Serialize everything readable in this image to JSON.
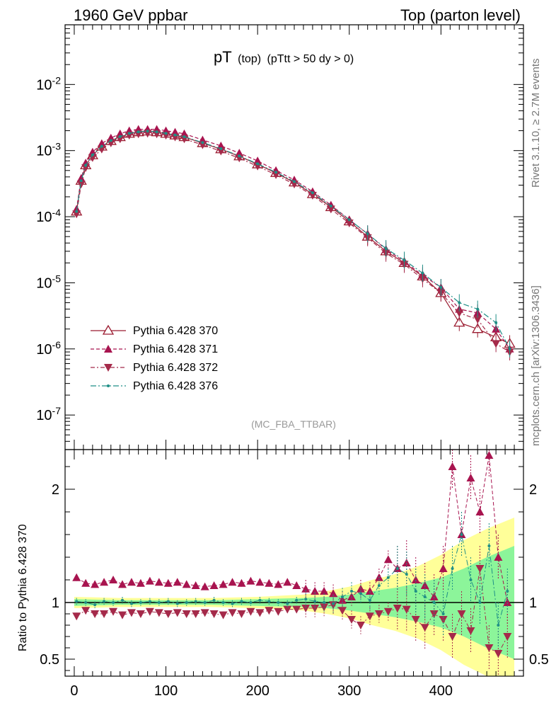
{
  "header": {
    "left": "1960 GeV ppbar",
    "right": "Top (parton level)"
  },
  "title": {
    "main": "pT",
    "sub1": "(top)",
    "sub2": "(pTtt > 50 dy > 0)"
  },
  "side": {
    "rivet": "Rivet 3.1.10, ≥ 2.7M events",
    "mcplots": "mcplots.cern.ch [arXiv:1306.3436]"
  },
  "analysis_label": "(MC_FBA_TTBAR)",
  "ratio_ylabel": "Ratio to Pythia 6.428 370",
  "colors": {
    "s370": "#9b1b30",
    "s371": "#a8144f",
    "s372": "#a52a4a",
    "s376": "#1f8f86",
    "band_yellow": "#ffff99",
    "band_green": "#8cf59a"
  },
  "chart_data": [
    {
      "type": "line",
      "panel": "main",
      "ylog": true,
      "xlim": [
        -10,
        490
      ],
      "ylim": [
        3e-08,
        0.08
      ],
      "ytick_labels": [
        "10^-2",
        "10^-3",
        "10^-4",
        "10^-5",
        "10^-6",
        "10^-7"
      ],
      "ytick_values": [
        0.01,
        0.001,
        0.0001,
        1e-05,
        1e-06,
        1e-07
      ],
      "legend_position": "bottom-left",
      "series": [
        {
          "name": "Pythia 6.428 370",
          "marker": "open-triangle-up",
          "x": [
            2.5,
            7.5,
            12.5,
            20,
            30,
            40,
            50,
            60,
            70,
            80,
            90,
            100,
            110,
            120,
            140,
            160,
            180,
            200,
            220,
            240,
            260,
            280,
            300,
            320,
            340,
            360,
            380,
            400,
            420,
            440,
            460,
            475
          ],
          "y": [
            0.00012,
            0.00035,
            0.0006,
            0.00085,
            0.00115,
            0.0014,
            0.0016,
            0.0018,
            0.0019,
            0.00195,
            0.0019,
            0.0018,
            0.0017,
            0.0016,
            0.0013,
            0.00105,
            0.00082,
            0.00062,
            0.00046,
            0.00033,
            0.00022,
            0.00014,
            8.5e-05,
            5e-05,
            3e-05,
            2e-05,
            1.25e-05,
            7e-06,
            2.5e-06,
            2e-06,
            1.5e-06,
            1.2e-06
          ]
        },
        {
          "name": "Pythia 6.428 371",
          "marker": "filled-triangle-up",
          "x": [
            2.5,
            7.5,
            12.5,
            20,
            30,
            40,
            50,
            60,
            70,
            80,
            90,
            100,
            110,
            120,
            140,
            160,
            180,
            200,
            220,
            240,
            260,
            280,
            300,
            320,
            340,
            360,
            380,
            400,
            420,
            440,
            460,
            475
          ],
          "y": [
            0.00013,
            0.00038,
            0.00065,
            0.00095,
            0.00128,
            0.00155,
            0.0018,
            0.002,
            0.0021,
            0.0021,
            0.0021,
            0.002,
            0.0019,
            0.0018,
            0.00145,
            0.00118,
            0.00092,
            0.0007,
            0.0005,
            0.00036,
            0.00024,
            0.00015,
            9e-05,
            5.5e-05,
            3.2e-05,
            2.1e-05,
            1.3e-05,
            8.5e-06,
            4e-06,
            3.5e-06,
            2e-06,
            1e-06
          ]
        },
        {
          "name": "Pythia 6.428 372",
          "marker": "filled-triangle-down",
          "x": [
            2.5,
            7.5,
            12.5,
            20,
            30,
            40,
            50,
            60,
            70,
            80,
            90,
            100,
            110,
            120,
            140,
            160,
            180,
            200,
            220,
            240,
            260,
            280,
            300,
            320,
            340,
            360,
            380,
            400,
            420,
            440,
            460,
            475
          ],
          "y": [
            0.00011,
            0.00031,
            0.00055,
            0.00078,
            0.00105,
            0.0013,
            0.0015,
            0.0017,
            0.00178,
            0.00182,
            0.00178,
            0.0017,
            0.0016,
            0.0015,
            0.00122,
            0.00098,
            0.00077,
            0.00058,
            0.00043,
            0.00031,
            0.00021,
            0.00013,
            8e-05,
            4.8e-05,
            2.8e-05,
            1.9e-05,
            1.15e-05,
            7e-06,
            3.5e-06,
            2.8e-06,
            1.2e-06,
            9e-07
          ]
        },
        {
          "name": "Pythia 6.428 376",
          "marker": "dot",
          "x": [
            2.5,
            7.5,
            12.5,
            20,
            30,
            40,
            50,
            60,
            70,
            80,
            90,
            100,
            110,
            120,
            140,
            160,
            180,
            200,
            220,
            240,
            260,
            280,
            300,
            320,
            340,
            360,
            380,
            400,
            420,
            440,
            460,
            475
          ],
          "y": [
            0.00012,
            0.00035,
            0.0006,
            0.00086,
            0.00116,
            0.00142,
            0.00163,
            0.00182,
            0.00192,
            0.00197,
            0.00192,
            0.00182,
            0.00172,
            0.00162,
            0.00132,
            0.00107,
            0.00083,
            0.00063,
            0.00047,
            0.00034,
            0.00023,
            0.000145,
            9e-05,
            5.5e-05,
            3.3e-05,
            2.2e-05,
            1.4e-05,
            8.5e-06,
            5e-06,
            4e-06,
            2.5e-06,
            1e-06
          ]
        }
      ]
    },
    {
      "type": "line",
      "panel": "ratio",
      "xlim": [
        -10,
        490
      ],
      "ylim": [
        0.35,
        2.35
      ],
      "xtick_labels": [
        "0",
        "100",
        "200",
        "300",
        "400"
      ],
      "xtick_values": [
        0,
        100,
        200,
        300,
        400
      ],
      "ytick_labels": [
        "0.5",
        "1",
        "2"
      ],
      "ytick_values": [
        0.5,
        1,
        2
      ],
      "band_x": [
        0,
        50,
        100,
        150,
        200,
        250,
        275,
        300,
        325,
        350,
        375,
        400,
        425,
        450,
        480
      ],
      "band_yellow_halfwidth": [
        0.05,
        0.04,
        0.04,
        0.04,
        0.05,
        0.07,
        0.1,
        0.14,
        0.2,
        0.25,
        0.32,
        0.42,
        0.55,
        0.65,
        0.75
      ],
      "band_green_halfwidth": [
        0.03,
        0.02,
        0.02,
        0.02,
        0.03,
        0.04,
        0.05,
        0.07,
        0.1,
        0.13,
        0.17,
        0.22,
        0.3,
        0.4,
        0.5
      ],
      "series": [
        {
          "name": "Pythia 6.428 371",
          "marker": "filled-triangle-up",
          "x": [
            2.5,
            12.5,
            22.5,
            32.5,
            42.5,
            52.5,
            62.5,
            72.5,
            82.5,
            92.5,
            102.5,
            112.5,
            122.5,
            132.5,
            142.5,
            152.5,
            162.5,
            172.5,
            182.5,
            192.5,
            202.5,
            212.5,
            222.5,
            232.5,
            242.5,
            252.5,
            262.5,
            272.5,
            282.5,
            292.5,
            302.5,
            312.5,
            322.5,
            332.5,
            342.5,
            352.5,
            362.5,
            372.5,
            382.5,
            392.5,
            402.5,
            412.5,
            422.5,
            432.5,
            442.5,
            452.5,
            462.5,
            472.5
          ],
          "y": [
            1.22,
            1.17,
            1.16,
            1.18,
            1.2,
            1.16,
            1.18,
            1.17,
            1.19,
            1.18,
            1.17,
            1.18,
            1.16,
            1.15,
            1.14,
            1.15,
            1.16,
            1.18,
            1.17,
            1.19,
            1.18,
            1.17,
            1.16,
            1.18,
            1.15,
            1.12,
            1.1,
            1.1,
            1.08,
            1.02,
            1.05,
            1.12,
            1.1,
            1.22,
            1.38,
            1.3,
            1.35,
            1.2,
            1.15,
            1.05,
            1.3,
            2.2,
            1.6,
            2.1,
            1.8,
            2.3,
            1.4,
            1.0
          ]
        },
        {
          "name": "Pythia 6.428 372",
          "marker": "filled-triangle-down",
          "x": [
            2.5,
            12.5,
            22.5,
            32.5,
            42.5,
            52.5,
            62.5,
            72.5,
            82.5,
            92.5,
            102.5,
            112.5,
            122.5,
            132.5,
            142.5,
            152.5,
            162.5,
            172.5,
            182.5,
            192.5,
            202.5,
            212.5,
            222.5,
            232.5,
            242.5,
            252.5,
            262.5,
            272.5,
            282.5,
            292.5,
            302.5,
            312.5,
            322.5,
            332.5,
            342.5,
            352.5,
            362.5,
            372.5,
            382.5,
            392.5,
            402.5,
            412.5,
            422.5,
            432.5,
            442.5,
            452.5,
            462.5,
            472.5
          ],
          "y": [
            0.88,
            0.93,
            0.9,
            0.9,
            0.92,
            0.89,
            0.91,
            0.9,
            0.92,
            0.91,
            0.9,
            0.91,
            0.9,
            0.9,
            0.91,
            0.9,
            0.89,
            0.91,
            0.9,
            0.92,
            0.91,
            0.93,
            0.92,
            0.94,
            0.94,
            0.95,
            0.95,
            0.96,
            0.98,
            0.93,
            0.85,
            0.8,
            0.88,
            0.9,
            0.92,
            0.95,
            0.94,
            0.85,
            0.78,
            0.9,
            0.85,
            0.7,
            0.9,
            0.75,
            1.3,
            0.6,
            0.55,
            0.7
          ]
        },
        {
          "name": "Pythia 6.428 376",
          "marker": "dot",
          "x": [
            2.5,
            12.5,
            22.5,
            32.5,
            42.5,
            52.5,
            62.5,
            72.5,
            82.5,
            92.5,
            102.5,
            112.5,
            122.5,
            132.5,
            142.5,
            152.5,
            162.5,
            172.5,
            182.5,
            192.5,
            202.5,
            212.5,
            222.5,
            232.5,
            242.5,
            252.5,
            262.5,
            272.5,
            282.5,
            292.5,
            302.5,
            312.5,
            322.5,
            332.5,
            342.5,
            352.5,
            362.5,
            372.5,
            382.5,
            392.5,
            402.5,
            412.5,
            422.5,
            432.5,
            442.5,
            452.5,
            462.5,
            472.5
          ],
          "y": [
            1.01,
            1.0,
            0.98,
            1.01,
            1.0,
            1.02,
            0.99,
            1.0,
            1.01,
            1.0,
            1.01,
            0.99,
            1.0,
            1.01,
            1.0,
            1.02,
            1.0,
            0.99,
            1.01,
            1.0,
            1.02,
            1.01,
            1.0,
            0.99,
            1.02,
            1.03,
            1.01,
            1.0,
            0.99,
            1.05,
            1.1,
            1.08,
            1.02,
            1.15,
            1.22,
            1.3,
            1.25,
            1.1,
            1.05,
            1.0,
            0.9,
            1.3,
            1.6,
            1.2,
            1.0,
            1.5,
            0.8,
            1.1
          ]
        }
      ]
    }
  ]
}
